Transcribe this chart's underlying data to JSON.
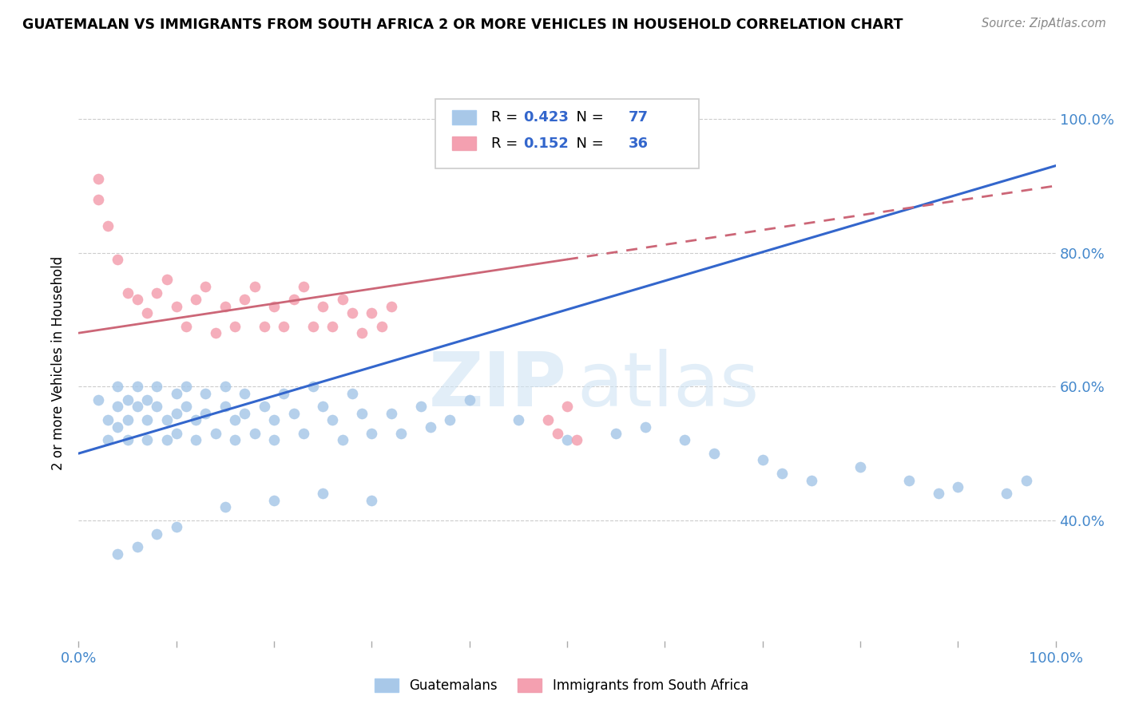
{
  "title": "GUATEMALAN VS IMMIGRANTS FROM SOUTH AFRICA 2 OR MORE VEHICLES IN HOUSEHOLD CORRELATION CHART",
  "source": "Source: ZipAtlas.com",
  "ylabel": "2 or more Vehicles in Household",
  "blue_R": 0.423,
  "blue_N": 77,
  "pink_R": 0.152,
  "pink_N": 36,
  "blue_color": "#a8c8e8",
  "pink_color": "#f4a0b0",
  "blue_line_color": "#3366cc",
  "pink_line_color": "#cc6677",
  "legend1_label": "Guatemalans",
  "legend2_label": "Immigrants from South Africa",
  "watermark_zip": "ZIP",
  "watermark_atlas": "atlas",
  "xlim": [
    0,
    100
  ],
  "ylim": [
    22,
    105
  ],
  "yticks": [
    40,
    60,
    80,
    100
  ],
  "xticks": [
    0,
    10,
    20,
    30,
    40,
    50,
    60,
    70,
    80,
    90,
    100
  ],
  "blue_line": {
    "x0": 0,
    "x1": 100,
    "y0": 50,
    "y1": 93
  },
  "pink_line_solid": {
    "x0": 0,
    "x1": 50,
    "y0": 68,
    "y1": 79
  },
  "pink_line_dash": {
    "x0": 50,
    "x1": 100,
    "y0": 79,
    "y1": 90
  },
  "blue_dots": {
    "x": [
      2,
      3,
      3,
      4,
      4,
      4,
      5,
      5,
      5,
      6,
      6,
      7,
      7,
      7,
      8,
      8,
      9,
      9,
      10,
      10,
      10,
      11,
      11,
      12,
      12,
      13,
      13,
      14,
      15,
      15,
      16,
      16,
      17,
      17,
      18,
      19,
      20,
      20,
      21,
      22,
      23,
      24,
      25,
      26,
      27,
      28,
      29,
      30,
      32,
      33,
      35,
      36,
      38,
      40,
      45,
      50,
      55,
      58,
      62,
      65,
      70,
      72,
      75,
      80,
      85,
      88,
      90,
      95,
      97,
      30,
      25,
      20,
      15,
      10,
      8,
      6,
      4
    ],
    "y": [
      58,
      55,
      52,
      60,
      57,
      54,
      58,
      55,
      52,
      60,
      57,
      58,
      55,
      52,
      60,
      57,
      55,
      52,
      59,
      56,
      53,
      60,
      57,
      55,
      52,
      59,
      56,
      53,
      60,
      57,
      55,
      52,
      59,
      56,
      53,
      57,
      55,
      52,
      59,
      56,
      53,
      60,
      57,
      55,
      52,
      59,
      56,
      53,
      56,
      53,
      57,
      54,
      55,
      58,
      55,
      52,
      53,
      54,
      52,
      50,
      49,
      47,
      46,
      48,
      46,
      44,
      45,
      44,
      46,
      43,
      44,
      43,
      42,
      39,
      38,
      36,
      35
    ]
  },
  "pink_dots": {
    "x": [
      2,
      2,
      3,
      4,
      5,
      6,
      7,
      8,
      9,
      10,
      11,
      12,
      13,
      14,
      15,
      16,
      17,
      18,
      19,
      20,
      21,
      22,
      23,
      24,
      25,
      26,
      27,
      28,
      29,
      30,
      31,
      32,
      48,
      49,
      50,
      51
    ],
    "y": [
      88,
      91,
      84,
      79,
      74,
      73,
      71,
      74,
      76,
      72,
      69,
      73,
      75,
      68,
      72,
      69,
      73,
      75,
      69,
      72,
      69,
      73,
      75,
      69,
      72,
      69,
      73,
      71,
      68,
      71,
      69,
      72,
      55,
      53,
      57,
      52
    ]
  }
}
